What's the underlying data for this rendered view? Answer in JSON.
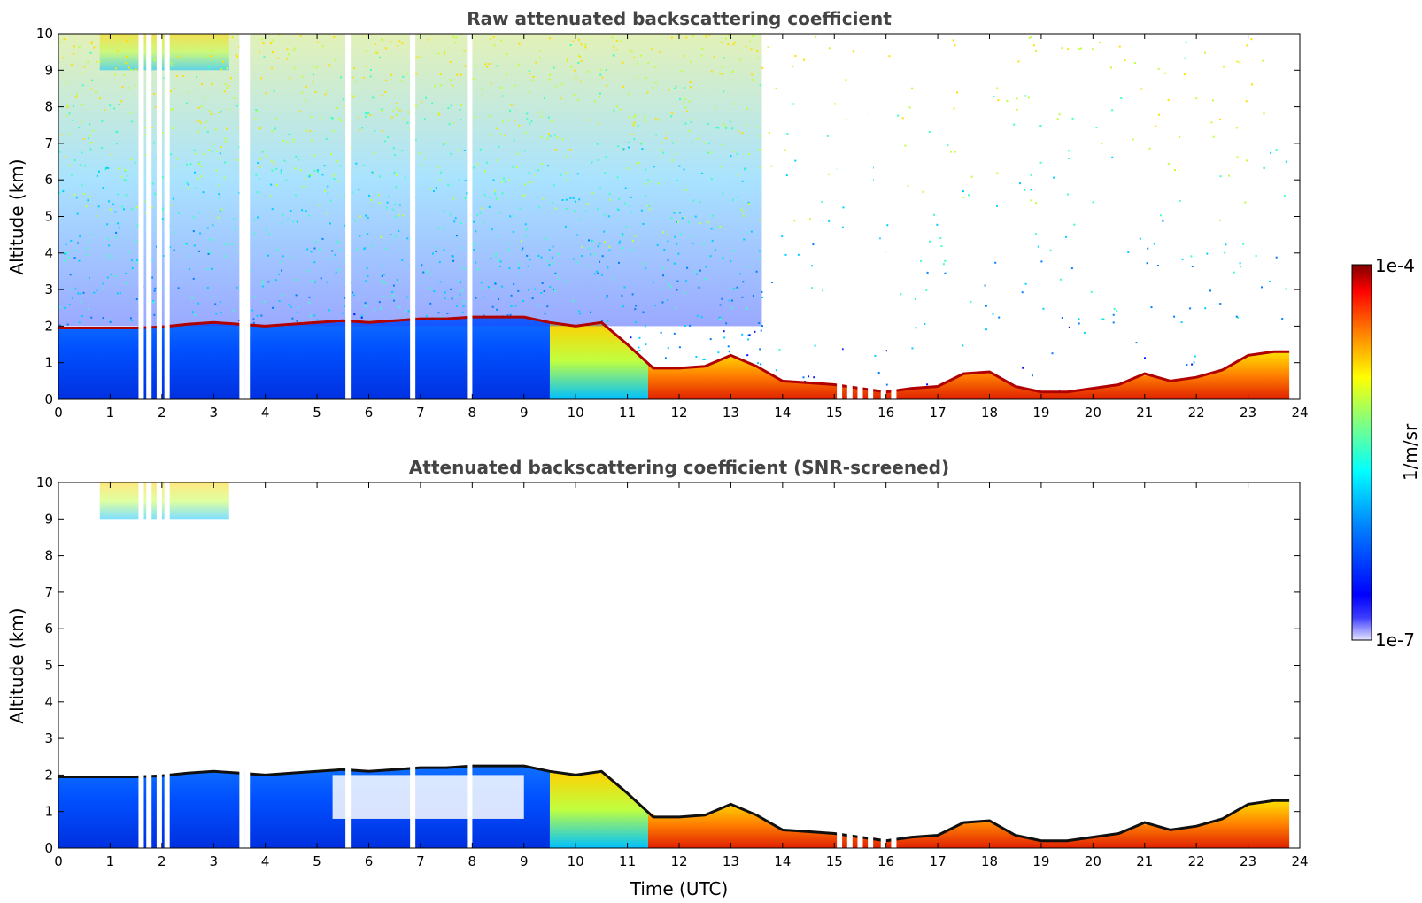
{
  "chart_data": [
    {
      "type": "heatmap",
      "title": "Raw attenuated backscattering coefficient",
      "xlabel": "",
      "ylabel": "Altitude (km)",
      "xlim": [
        0,
        24
      ],
      "ylim": [
        0,
        10
      ],
      "x_ticks": [
        0,
        1,
        2,
        3,
        4,
        5,
        6,
        7,
        8,
        9,
        10,
        11,
        12,
        13,
        14,
        15,
        16,
        17,
        18,
        19,
        20,
        21,
        22,
        23,
        24
      ],
      "y_ticks": [
        0,
        1,
        2,
        3,
        4,
        5,
        6,
        7,
        8,
        9,
        10
      ],
      "cloud_base": [
        [
          0,
          1.95
        ],
        [
          0.5,
          1.95
        ],
        [
          1,
          1.95
        ],
        [
          1.5,
          1.95
        ],
        [
          2,
          1.98
        ],
        [
          2.5,
          2.05
        ],
        [
          3,
          2.1
        ],
        [
          3.5,
          2.05
        ],
        [
          4,
          2.0
        ],
        [
          4.5,
          2.05
        ],
        [
          5,
          2.1
        ],
        [
          5.5,
          2.15
        ],
        [
          6,
          2.1
        ],
        [
          6.5,
          2.15
        ],
        [
          7,
          2.2
        ],
        [
          7.5,
          2.2
        ],
        [
          8,
          2.25
        ],
        [
          8.5,
          2.25
        ],
        [
          9,
          2.25
        ],
        [
          9.5,
          2.1
        ],
        [
          10,
          2.0
        ],
        [
          10.5,
          2.1
        ],
        [
          11,
          1.5
        ],
        [
          11.5,
          0.85
        ],
        [
          12,
          0.85
        ],
        [
          12.5,
          0.9
        ],
        [
          13,
          1.2
        ],
        [
          13.5,
          0.9
        ],
        [
          14,
          0.5
        ],
        [
          14.5,
          0.45
        ],
        [
          15,
          0.4
        ],
        [
          15.5,
          0.3
        ],
        [
          16,
          0.2
        ],
        [
          16.5,
          0.3
        ],
        [
          17,
          0.35
        ],
        [
          17.5,
          0.7
        ],
        [
          18,
          0.75
        ],
        [
          18.5,
          0.35
        ],
        [
          19,
          0.2
        ],
        [
          19.5,
          0.2
        ],
        [
          20,
          0.3
        ],
        [
          20.5,
          0.4
        ],
        [
          21,
          0.7
        ],
        [
          21.5,
          0.5
        ],
        [
          22,
          0.6
        ],
        [
          22.5,
          0.8
        ],
        [
          23,
          1.2
        ],
        [
          23.5,
          1.3
        ],
        [
          23.8,
          1.3
        ]
      ],
      "data_gaps_utc": [
        1.6,
        1.75,
        1.95,
        2.1,
        3.55,
        3.65,
        5.6,
        6.85,
        7.95,
        15.1,
        15.3,
        15.5,
        15.7,
        15.95,
        16.15,
        23.85
      ],
      "signal_layers": [
        {
          "region": "boundary layer",
          "x": [
            0,
            9.5
          ],
          "y": [
            0,
            2.0
          ],
          "intensity": "low"
        },
        {
          "region": "boundary layer",
          "x": [
            9.5,
            11.4
          ],
          "y": [
            0,
            2.2
          ],
          "intensity": "moderate"
        },
        {
          "region": "boundary layer",
          "x": [
            11.4,
            23.8
          ],
          "y": [
            0,
            1.2
          ],
          "intensity": "high"
        },
        {
          "region": "free troposphere noise",
          "x": [
            0,
            13.6
          ],
          "y": [
            2.0,
            10
          ],
          "intensity": "moderate"
        },
        {
          "region": "upper cloud",
          "x": [
            0.8,
            3.3
          ],
          "y": [
            9.0,
            10
          ],
          "intensity": "moderate"
        }
      ]
    },
    {
      "type": "heatmap",
      "title": "Attenuated backscattering coefficient (SNR-screened)",
      "xlabel": "Time (UTC)",
      "ylabel": "Altitude (km)",
      "xlim": [
        0,
        24
      ],
      "ylim": [
        0,
        10
      ],
      "x_ticks": [
        0,
        1,
        2,
        3,
        4,
        5,
        6,
        7,
        8,
        9,
        10,
        11,
        12,
        13,
        14,
        15,
        16,
        17,
        18,
        19,
        20,
        21,
        22,
        23,
        24
      ],
      "y_ticks": [
        0,
        1,
        2,
        3,
        4,
        5,
        6,
        7,
        8,
        9,
        10
      ],
      "screened_gap": {
        "x": [
          5.3,
          9.0
        ],
        "y": [
          0.8,
          2.0
        ]
      }
    }
  ],
  "colorbar": {
    "label": "1/m/sr",
    "max_label": "1e-4",
    "min_label": "1e-7",
    "colormap": "jet",
    "colors": [
      "#dfe0ff",
      "#0000ff",
      "#0080ff",
      "#00ffff",
      "#80ff80",
      "#ffff00",
      "#ff8000",
      "#ff0000",
      "#800000"
    ]
  }
}
